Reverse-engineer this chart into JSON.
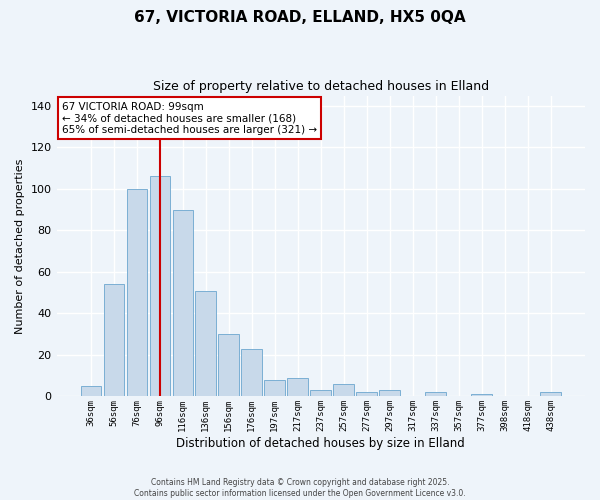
{
  "title": "67, VICTORIA ROAD, ELLAND, HX5 0QA",
  "subtitle": "Size of property relative to detached houses in Elland",
  "xlabel": "Distribution of detached houses by size in Elland",
  "ylabel": "Number of detached properties",
  "bar_labels": [
    "36sqm",
    "56sqm",
    "76sqm",
    "96sqm",
    "116sqm",
    "136sqm",
    "156sqm",
    "176sqm",
    "197sqm",
    "217sqm",
    "237sqm",
    "257sqm",
    "277sqm",
    "297sqm",
    "317sqm",
    "337sqm",
    "357sqm",
    "377sqm",
    "398sqm",
    "418sqm",
    "438sqm"
  ],
  "bar_values": [
    5,
    54,
    100,
    106,
    90,
    51,
    30,
    23,
    8,
    9,
    3,
    6,
    2,
    3,
    0,
    2,
    0,
    1,
    0,
    0,
    2
  ],
  "bar_color": "#c8d9ea",
  "bar_edge_color": "#7bafd4",
  "vline_x": 3,
  "vline_color": "#cc0000",
  "ylim": [
    0,
    145
  ],
  "yticks": [
    0,
    20,
    40,
    60,
    80,
    100,
    120,
    140
  ],
  "annotation_title": "67 VICTORIA ROAD: 99sqm",
  "annotation_line1": "← 34% of detached houses are smaller (168)",
  "annotation_line2": "65% of semi-detached houses are larger (321) →",
  "annotation_box_color": "#ffffff",
  "annotation_box_edge": "#cc0000",
  "footer_line1": "Contains HM Land Registry data © Crown copyright and database right 2025.",
  "footer_line2": "Contains public sector information licensed under the Open Government Licence v3.0.",
  "background_color": "#eef4fa",
  "grid_color": "#ffffff"
}
